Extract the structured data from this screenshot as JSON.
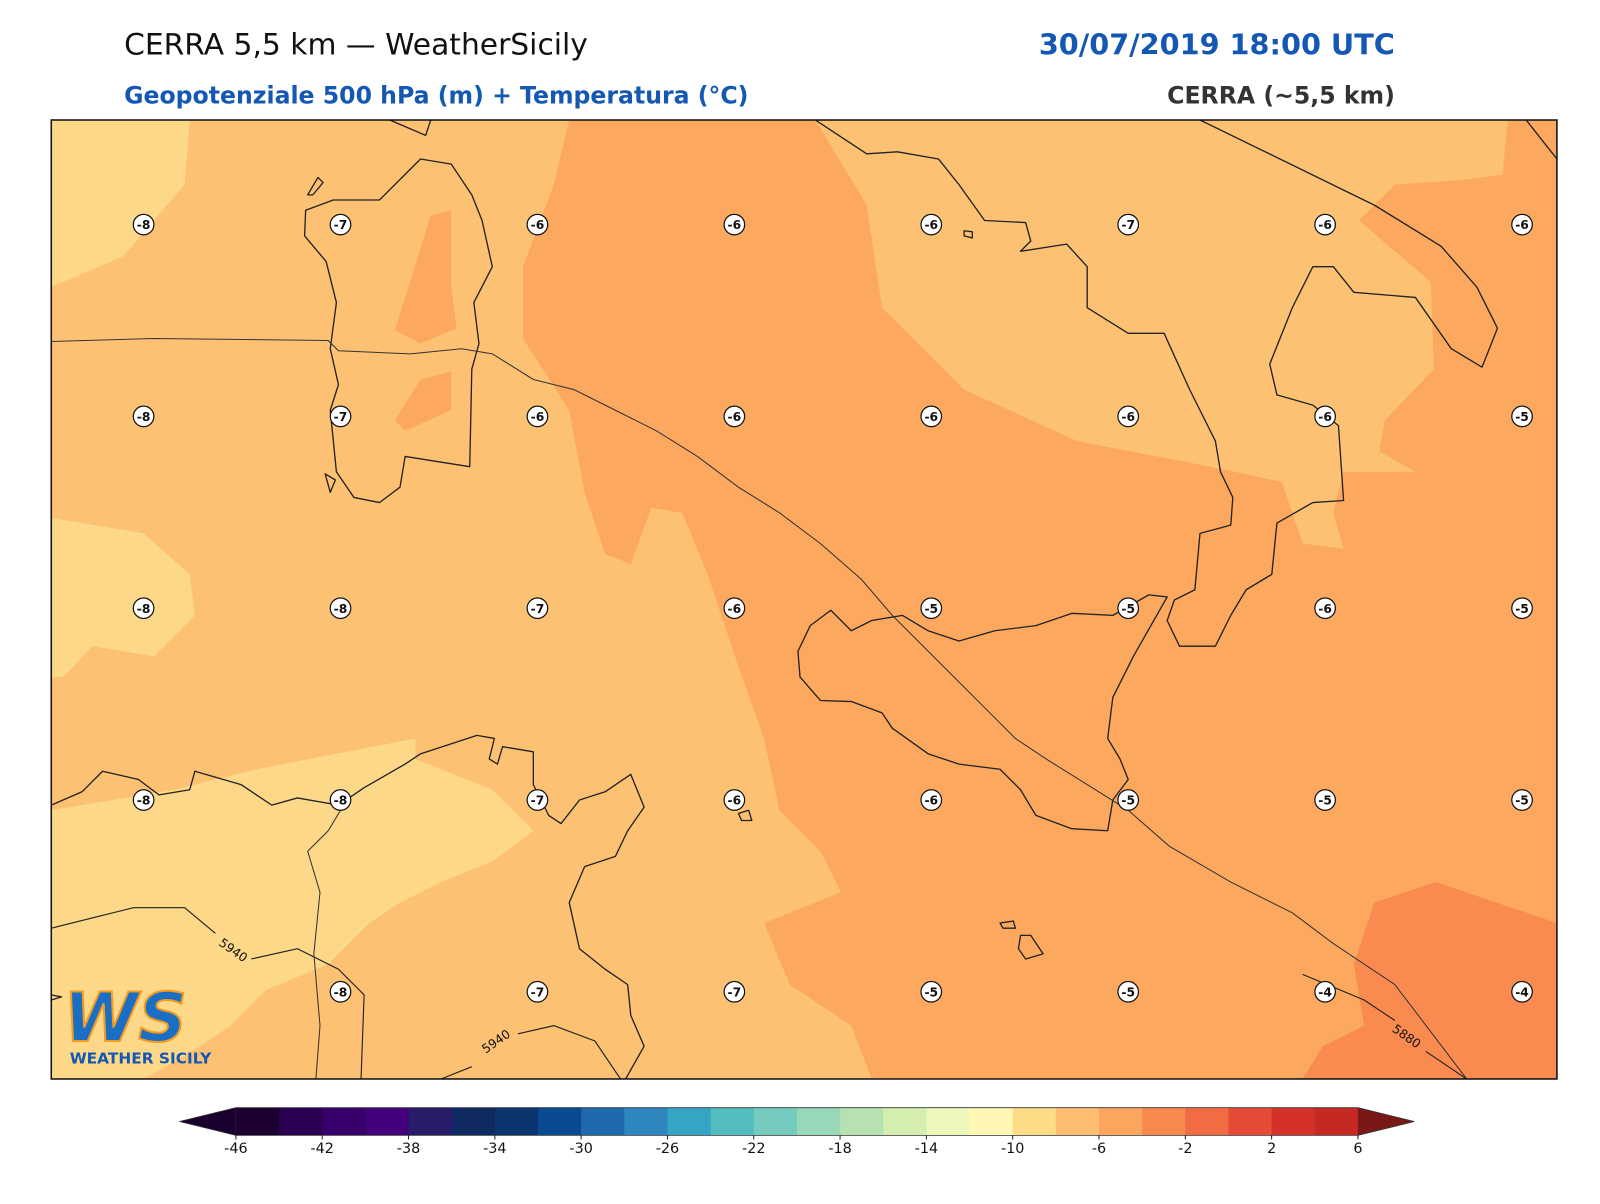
{
  "header": {
    "title": "CERRA 5,5 km — WeatherSicily",
    "datetime": "30/07/2019 18:00 UTC",
    "subtitle": "Geopotenziale 500 hPa (m) + Temperatura (°C)",
    "model": "CERRA (~5,5 km)"
  },
  "map": {
    "temperature_grid": [
      [
        -8,
        -7,
        -6,
        -6,
        -6,
        -7,
        -6,
        -6
      ],
      [
        -8,
        -7,
        -6,
        -6,
        -6,
        -6,
        -6,
        -5
      ],
      [
        -8,
        -8,
        -7,
        -6,
        -5,
        -5,
        -6,
        -5
      ],
      [
        -8,
        -8,
        -7,
        -6,
        -6,
        -5,
        -5,
        -5
      ],
      [
        null,
        -8,
        -7,
        -7,
        -5,
        -5,
        -4,
        -4
      ]
    ],
    "contour_labels": [
      "5940",
      "5940",
      "5880"
    ]
  },
  "colorbar": {
    "ticks": [
      -46,
      -42,
      -38,
      -34,
      -30,
      -26,
      -22,
      -18,
      -14,
      -10,
      -6,
      -2,
      2,
      6
    ],
    "colors": [
      "#1c0030",
      "#2a0050",
      "#38006a",
      "#44007a",
      "#2a1a6a",
      "#0f2a60",
      "#0a3570",
      "#0a4a90",
      "#1f6aad",
      "#2e86be",
      "#35a5c5",
      "#52bcbe",
      "#75cbbd",
      "#98d7b8",
      "#b5e2b0",
      "#d4eeb0",
      "#ebf7bb",
      "#fff7b3",
      "#fedb86",
      "#fdbe72",
      "#fca55e",
      "#f98a4e",
      "#f26b42",
      "#e54b35",
      "#d43229",
      "#c62823"
    ],
    "extend_colors": [
      "#1a0030",
      "#7a1818"
    ]
  },
  "logo": {
    "mark": "WS",
    "name": "WEATHER SICILY"
  }
}
